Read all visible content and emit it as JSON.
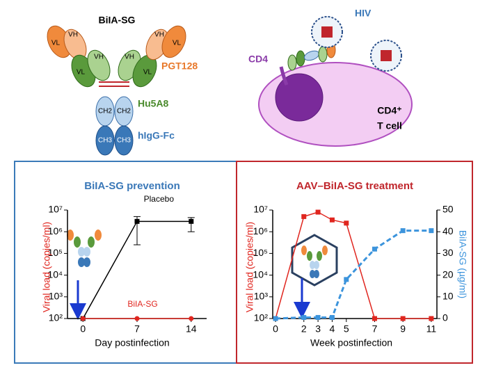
{
  "diagram": {
    "title": "BiIA-SG",
    "arm_labels": [
      "VL",
      "VH",
      "VL",
      "VH",
      "VH",
      "VL",
      "VH",
      "VL"
    ],
    "domain_labels": [
      "CH2",
      "CH2",
      "CH3",
      "CH3"
    ],
    "pgt128": "PGT128",
    "hu5a8": "Hu5A8",
    "fc": "hIgG-Fc",
    "hiv": "HIV",
    "cd4": "CD4",
    "cell_1": "CD4⁺",
    "cell_2": "T cell"
  },
  "chart_data": [
    {
      "type": "line",
      "title": "BiIA-SG prevention",
      "x_label": "Day postinfection",
      "y_label": "Viral load (copies/ml)",
      "x": [
        0,
        7,
        14
      ],
      "xlim": [
        -2,
        16
      ],
      "xticks": [
        0,
        7,
        14
      ],
      "log_y": true,
      "ylim": [
        100,
        10000000
      ],
      "yticks": [
        {
          "value": 100,
          "label": "10²"
        },
        {
          "value": 1000,
          "label": "10³"
        },
        {
          "value": 10000,
          "label": "10⁴"
        },
        {
          "value": 100000,
          "label": "10⁵"
        },
        {
          "value": 1000000,
          "label": "10⁶"
        },
        {
          "value": 10000000,
          "label": "10⁷"
        }
      ],
      "series": [
        {
          "name": "Placebo",
          "color": "#000000",
          "marker": "square",
          "values": [
            100,
            3000000,
            3000000
          ],
          "lower": [
            null,
            250000,
            1000000
          ],
          "upper": [
            null,
            5000000,
            4500000
          ]
        },
        {
          "name": "BiIA-SG",
          "color": "#e0261f",
          "marker": "circle",
          "values": [
            100,
            100,
            100
          ]
        }
      ]
    },
    {
      "type": "line",
      "title": "AAV–BiIA-SG treatment",
      "x_label": "Week postinfection",
      "y_label": "Viral load (copies/ml)",
      "y2_label": "BiIA-SG (µg/ml)",
      "x": [
        0,
        2,
        3,
        4,
        5,
        7,
        9,
        11
      ],
      "xlim": [
        -0.2,
        11.4
      ],
      "xticks": [
        0,
        2,
        3,
        4,
        5,
        7,
        9,
        11
      ],
      "log_y": true,
      "ylim": [
        100,
        10000000
      ],
      "yticks": [
        {
          "value": 100,
          "label": "10²"
        },
        {
          "value": 1000,
          "label": "10³"
        },
        {
          "value": 10000,
          "label": "10⁴"
        },
        {
          "value": 100000,
          "label": "10⁵"
        },
        {
          "value": 1000000,
          "label": "10⁶"
        },
        {
          "value": 10000000,
          "label": "10⁷"
        }
      ],
      "y2lim": [
        0,
        50
      ],
      "y2ticks": [
        0,
        10,
        20,
        30,
        40,
        50
      ],
      "series": [
        {
          "color": "#e0261f",
          "marker": "square",
          "values": [
            100,
            5000000,
            8000000,
            3500000,
            2500000,
            100,
            100,
            100
          ]
        },
        {
          "color": "#3c94dc",
          "marker": "square",
          "dashed": true,
          "axis": "y2",
          "values": [
            0,
            0.5,
            0.5,
            0.5,
            18,
            32,
            40.5,
            40.5
          ]
        }
      ]
    }
  ]
}
